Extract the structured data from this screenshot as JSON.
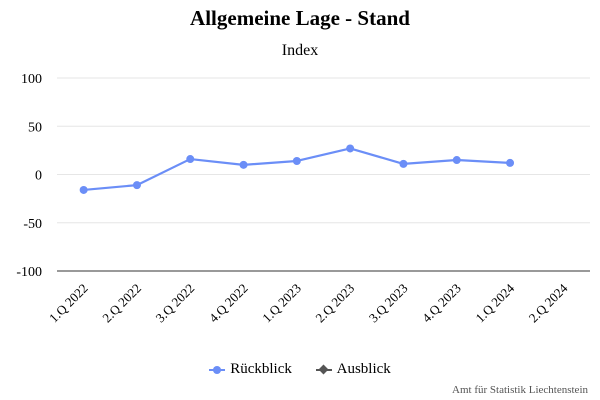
{
  "chart_data": {
    "type": "line",
    "title": "Allgemeine Lage - Stand",
    "subtitle": "Index",
    "categories": [
      "1.Q 2022",
      "2.Q 2022",
      "3.Q 2022",
      "4.Q 2022",
      "1.Q 2023",
      "2.Q 2023",
      "3.Q 2023",
      "4.Q 2023",
      "1.Q 2024",
      "2.Q 2024"
    ],
    "ylim": [
      -100,
      100
    ],
    "yticks": [
      100,
      50,
      0,
      -50,
      -100
    ],
    "grid": true,
    "legend_position": "bottom-center",
    "series": [
      {
        "name": "Rückblick",
        "color": "#6b8ef7",
        "marker": "circle",
        "values": [
          -16,
          -11,
          16,
          10,
          14,
          27,
          11,
          15,
          12,
          null
        ]
      },
      {
        "name": "Ausblick",
        "color": "#555555",
        "marker": "diamond",
        "values": [
          null,
          null,
          null,
          null,
          null,
          null,
          null,
          null,
          null,
          null
        ]
      }
    ]
  },
  "credits": "Amt für Statistik Liechtenstein"
}
